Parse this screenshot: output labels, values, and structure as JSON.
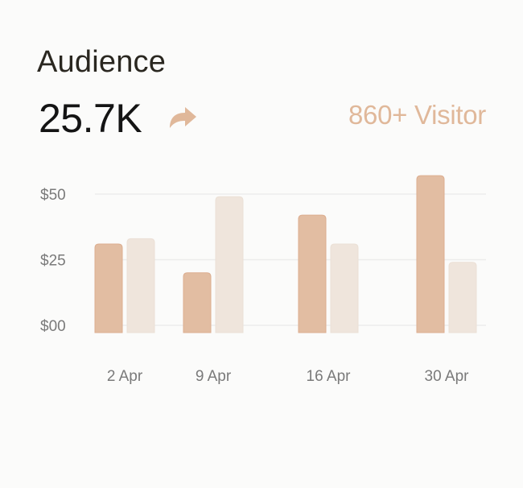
{
  "header": {
    "title": "Audience",
    "metric_value": "25.7K",
    "trend_icon": "curved-arrow-right-icon",
    "visitors_label": "860+ Visitor"
  },
  "colors": {
    "primary_bar": "#e2bda2",
    "secondary_bar": "#efe5dc",
    "accent": "#e0b89a",
    "gridline": "#ececec"
  },
  "chart_data": {
    "type": "bar",
    "title": "",
    "xlabel": "",
    "ylabel": "",
    "categories": [
      "2 Apr",
      "9 Apr",
      "16 Apr",
      "30 Apr"
    ],
    "series": [
      {
        "values": [
          31,
          20,
          42,
          57
        ]
      },
      {
        "values": [
          33,
          49,
          31,
          24
        ]
      }
    ],
    "yticks": [
      {
        "value": 0,
        "label": "$00"
      },
      {
        "value": 25,
        "label": "$25"
      },
      {
        "value": 50,
        "label": "$50"
      }
    ],
    "ylim": [
      0,
      60
    ],
    "grid": true,
    "legend": "none"
  }
}
